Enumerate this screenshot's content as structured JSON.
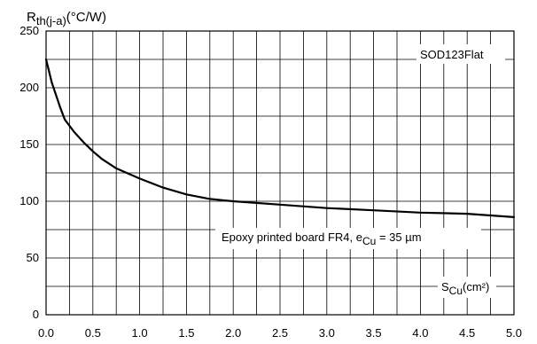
{
  "chart_data": {
    "type": "line",
    "ylabel": {
      "main": "R",
      "sub": "th(j-a)",
      "unit": "(°C/W)"
    },
    "xlabel": {
      "main": "S",
      "sub": "Cu",
      "unit": "(cm²)"
    },
    "xlim": [
      0,
      5
    ],
    "ylim": [
      0,
      250
    ],
    "x_ticks": [
      "0.0",
      "0.5",
      "1.0",
      "1.5",
      "2.0",
      "2.5",
      "3.0",
      "3.5",
      "4.0",
      "4.5",
      "5.0"
    ],
    "y_ticks": [
      "0",
      "50",
      "100",
      "150",
      "200",
      "250"
    ],
    "x_tick_values": [
      0,
      0.5,
      1.0,
      1.5,
      2.0,
      2.5,
      3.0,
      3.5,
      4.0,
      4.5,
      5.0
    ],
    "y_tick_values": [
      0,
      50,
      100,
      150,
      200,
      250
    ],
    "x_minor_step": 0.25,
    "y_minor_step": 25,
    "grid": true,
    "annotations": {
      "package": "SOD123Flat",
      "board": {
        "text": "Epoxy printed board FR4, e",
        "sub": "Cu",
        "rest": " = 35 µm"
      }
    },
    "series": [
      {
        "x": [
          0.0,
          0.03,
          0.06,
          0.1,
          0.15,
          0.2,
          0.3,
          0.4,
          0.5,
          0.6,
          0.75,
          1.0,
          1.25,
          1.5,
          1.75,
          2.0,
          2.5,
          3.0,
          3.5,
          4.0,
          4.5,
          5.0
        ],
        "y": [
          225,
          215,
          205,
          195,
          183,
          172,
          161,
          152,
          144,
          137,
          129,
          120,
          112,
          106,
          102,
          100,
          97,
          94,
          92,
          90,
          89,
          86
        ]
      }
    ]
  }
}
